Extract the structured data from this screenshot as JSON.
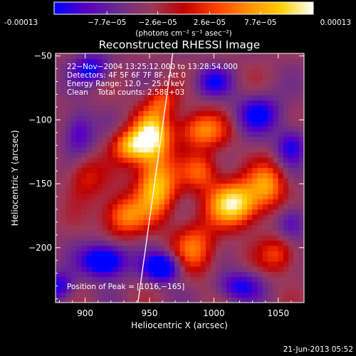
{
  "colorbar": {
    "tick_labels": [
      "-0.00013",
      "−7.7e−05",
      "−2.6e−05",
      "2.6e−05",
      "7.7e−05",
      "0.00013"
    ],
    "tick_values": [
      -0.00013,
      -7.7e-05,
      -2.6e-05,
      2.6e-05,
      7.7e-05,
      0.00013
    ],
    "range": [
      -0.00013,
      0.00013
    ],
    "unit_label": "(photons cm⁻² s⁻¹ asec⁻²)",
    "colors": [
      "#0000ff",
      "#5a00c0",
      "#6a2c8c",
      "#9a3a5a",
      "#c00000",
      "#ff4000",
      "#ff9000",
      "#ffd000",
      "#ffffff"
    ]
  },
  "footer_timestamp": "21-Jun-2013 05:52",
  "chart_data": {
    "type": "heatmap",
    "title": "Reconstructed RHESSI Image",
    "xlabel": "Heliocentric X (arcsec)",
    "ylabel": "Heliocentric Y (arcsec)",
    "xlim": [
      877,
      1070
    ],
    "ylim": [
      -243,
      -48
    ],
    "xticks": [
      900,
      950,
      1000,
      1050
    ],
    "yticks": [
      -50,
      -100,
      -150,
      -200
    ],
    "annotations": [
      "22−Nov−2004 13:25:12.000 to 13:28:54.000",
      "Detectors: 4F 5F 6F 7F 8F, Att 0",
      "Energy Range: 12.0 − 25.0 keV",
      "Clean    Total counts: 2.58E+03"
    ],
    "peak_label": "Position of Peak = [1016,−165]",
    "peak": [
      1016,
      -165
    ],
    "limb_line": {
      "x": [
        941,
        968
      ],
      "y": [
        -243,
        -48
      ]
    },
    "sources": [
      {
        "x": 1016,
        "y": -165,
        "amp": 1.0,
        "sx": 14,
        "sy": 12
      },
      {
        "x": 952,
        "y": -112,
        "amp": 0.92,
        "sx": 10,
        "sy": 14
      },
      {
        "x": 955,
        "y": -152,
        "amp": 0.85,
        "sx": 11,
        "sy": 16
      },
      {
        "x": 935,
        "y": -120,
        "amp": 0.7,
        "sx": 10,
        "sy": 9
      },
      {
        "x": 990,
        "y": -108,
        "amp": 0.6,
        "sx": 14,
        "sy": 10
      },
      {
        "x": 930,
        "y": -175,
        "amp": 0.62,
        "sx": 12,
        "sy": 11
      },
      {
        "x": 985,
        "y": -200,
        "amp": 0.55,
        "sx": 12,
        "sy": 14
      },
      {
        "x": 1042,
        "y": -150,
        "amp": 0.6,
        "sx": 10,
        "sy": 12
      },
      {
        "x": 1050,
        "y": -205,
        "amp": 0.45,
        "sx": 10,
        "sy": 10
      },
      {
        "x": 990,
        "y": -140,
        "amp": 0.5,
        "sx": 10,
        "sy": 10
      },
      {
        "x": 900,
        "y": -145,
        "amp": 0.35,
        "sx": 10,
        "sy": 12
      },
      {
        "x": 960,
        "y": -85,
        "amp": 0.4,
        "sx": 8,
        "sy": 8
      },
      {
        "x": 905,
        "y": -60,
        "amp": -0.55,
        "sx": 10,
        "sy": 8
      },
      {
        "x": 915,
        "y": -210,
        "amp": -0.85,
        "sx": 12,
        "sy": 9
      },
      {
        "x": 960,
        "y": -215,
        "amp": -0.8,
        "sx": 10,
        "sy": 8
      },
      {
        "x": 1035,
        "y": -95,
        "amp": -0.55,
        "sx": 12,
        "sy": 10
      },
      {
        "x": 1060,
        "y": -120,
        "amp": -0.5,
        "sx": 8,
        "sy": 10
      },
      {
        "x": 895,
        "y": -110,
        "amp": -0.45,
        "sx": 8,
        "sy": 12
      },
      {
        "x": 1020,
        "y": -230,
        "amp": -0.5,
        "sx": 12,
        "sy": 8
      },
      {
        "x": 1060,
        "y": -180,
        "amp": -0.4,
        "sx": 8,
        "sy": 10
      },
      {
        "x": 1000,
        "y": -70,
        "amp": -0.45,
        "sx": 10,
        "sy": 8
      },
      {
        "x": 880,
        "y": -230,
        "amp": -0.5,
        "sx": 8,
        "sy": 8
      }
    ]
  }
}
